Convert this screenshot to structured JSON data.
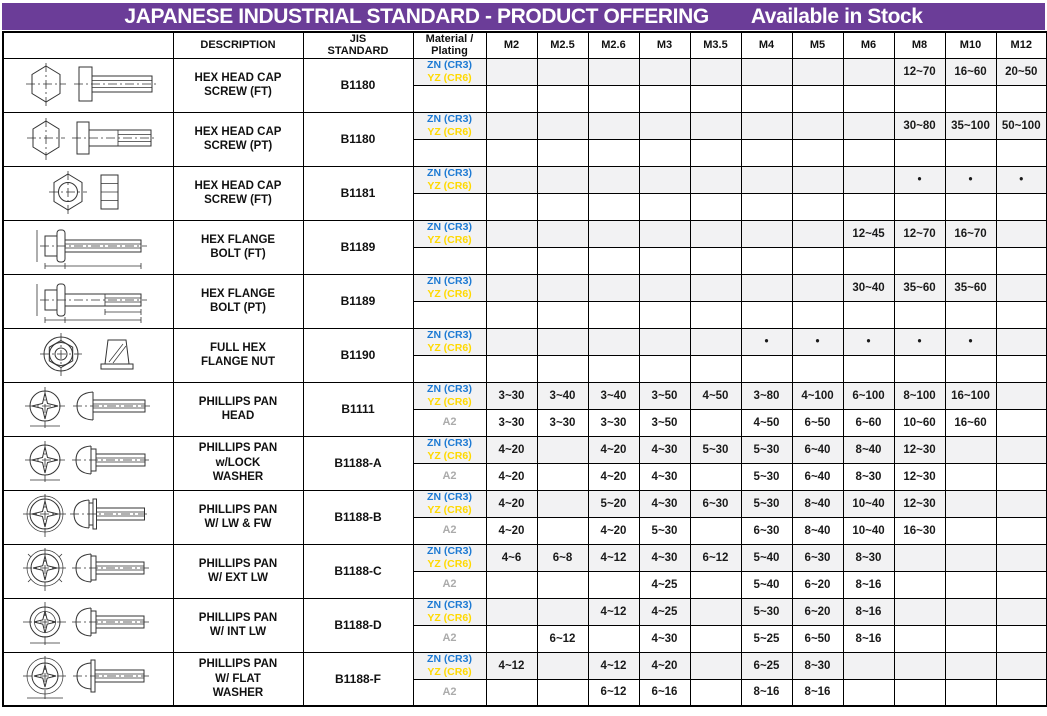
{
  "title": {
    "main": "JAPANESE INDUSTRIAL STANDARD - PRODUCT OFFERING",
    "availability": "Available in Stock"
  },
  "colors": {
    "title_bar_purple": "#6B3D98",
    "zn_blue": "#1D7AD3",
    "yz_yellow": "#FFD900",
    "a2_gray": "#ABABAB",
    "plated_row_bg": "#F2F2F3"
  },
  "header": {
    "image": "",
    "description": "DESCRIPTION",
    "jis": "JIS\nSTANDARD",
    "material": "Material /\nPlating",
    "sizes": [
      "M2",
      "M2.5",
      "M2.6",
      "M3",
      "M3.5",
      "M4",
      "M5",
      "M6",
      "M8",
      "M10",
      "M12"
    ]
  },
  "rows": [
    {
      "drawing": "hex-head-cap-screw-ft",
      "description": "HEX HEAD CAP\nSCREW (FT)",
      "jis": "B1180",
      "platings": [
        {
          "type": "znyz",
          "lines": [
            "ZN (CR3)",
            "YZ (CR6)"
          ],
          "values": [
            "",
            "",
            "",
            "",
            "",
            "",
            "",
            "",
            "12~70",
            "16~60",
            "20~50"
          ]
        },
        {
          "type": "empty",
          "label": "",
          "values": [
            "",
            "",
            "",
            "",
            "",
            "",
            "",
            "",
            "",
            "",
            ""
          ]
        }
      ]
    },
    {
      "drawing": "hex-head-cap-screw-pt",
      "description": "HEX HEAD CAP\nSCREW (PT)",
      "jis": "B1180",
      "platings": [
        {
          "type": "znyz",
          "lines": [
            "ZN (CR3)",
            "YZ (CR6)"
          ],
          "values": [
            "",
            "",
            "",
            "",
            "",
            "",
            "",
            "",
            "30~80",
            "35~100",
            "50~100"
          ]
        },
        {
          "type": "empty",
          "label": "",
          "values": [
            "",
            "",
            "",
            "",
            "",
            "",
            "",
            "",
            "",
            "",
            ""
          ]
        }
      ]
    },
    {
      "drawing": "hex-nut-screw-ft",
      "description": "HEX HEAD CAP\nSCREW (FT)",
      "jis": "B1181",
      "platings": [
        {
          "type": "znyz",
          "lines": [
            "ZN (CR3)",
            "YZ (CR6)"
          ],
          "values": [
            "",
            "",
            "",
            "",
            "",
            "",
            "",
            "",
            "•",
            "•",
            "•"
          ]
        },
        {
          "type": "empty",
          "label": "",
          "values": [
            "",
            "",
            "",
            "",
            "",
            "",
            "",
            "",
            "",
            "",
            ""
          ]
        }
      ]
    },
    {
      "drawing": "hex-flange-bolt-ft",
      "description": "HEX FLANGE\nBOLT (FT)",
      "jis": "B1189",
      "platings": [
        {
          "type": "znyz",
          "lines": [
            "ZN (CR3)",
            "YZ (CR6)"
          ],
          "values": [
            "",
            "",
            "",
            "",
            "",
            "",
            "",
            "12~45",
            "12~70",
            "16~70",
            ""
          ]
        },
        {
          "type": "empty",
          "label": "",
          "values": [
            "",
            "",
            "",
            "",
            "",
            "",
            "",
            "",
            "",
            "",
            ""
          ]
        }
      ]
    },
    {
      "drawing": "hex-flange-bolt-pt",
      "description": "HEX FLANGE\nBOLT (PT)",
      "jis": "B1189",
      "platings": [
        {
          "type": "znyz",
          "lines": [
            "ZN (CR3)",
            "YZ (CR6)"
          ],
          "values": [
            "",
            "",
            "",
            "",
            "",
            "",
            "",
            "30~40",
            "35~60",
            "35~60",
            ""
          ]
        },
        {
          "type": "empty",
          "label": "",
          "values": [
            "",
            "",
            "",
            "",
            "",
            "",
            "",
            "",
            "",
            "",
            ""
          ]
        }
      ]
    },
    {
      "drawing": "full-hex-flange-nut",
      "description": "FULL HEX\nFLANGE NUT",
      "jis": "B1190",
      "platings": [
        {
          "type": "znyz",
          "lines": [
            "ZN (CR3)",
            "YZ (CR6)"
          ],
          "values": [
            "",
            "",
            "",
            "",
            "",
            "•",
            "•",
            "•",
            "•",
            "•",
            ""
          ]
        },
        {
          "type": "empty",
          "label": "",
          "values": [
            "",
            "",
            "",
            "",
            "",
            "",
            "",
            "",
            "",
            "",
            ""
          ]
        }
      ]
    },
    {
      "drawing": "phillips-pan-head",
      "description": "PHILLIPS PAN\nHEAD",
      "jis": "B1111",
      "platings": [
        {
          "type": "znyz",
          "lines": [
            "ZN (CR3)",
            "YZ (CR6)"
          ],
          "values": [
            "3~30",
            "3~40",
            "3~40",
            "3~50",
            "4~50",
            "3~80",
            "4~100",
            "6~100",
            "8~100",
            "16~100",
            ""
          ]
        },
        {
          "type": "a2",
          "label": "A2",
          "values": [
            "3~30",
            "3~30",
            "3~30",
            "3~50",
            "",
            "4~50",
            "6~50",
            "6~60",
            "10~60",
            "16~60",
            ""
          ]
        }
      ]
    },
    {
      "drawing": "phillips-pan-lock-washer",
      "description": "PHILLIPS PAN\nw/LOCK\nWASHER",
      "jis": "B1188-A",
      "platings": [
        {
          "type": "znyz",
          "lines": [
            "ZN (CR3)",
            "YZ (CR6)"
          ],
          "values": [
            "4~20",
            "",
            "4~20",
            "4~30",
            "5~30",
            "5~30",
            "6~40",
            "8~40",
            "12~30",
            "",
            ""
          ]
        },
        {
          "type": "a2",
          "label": "A2",
          "values": [
            "4~20",
            "",
            "4~20",
            "4~30",
            "",
            "5~30",
            "6~40",
            "8~30",
            "12~30",
            "",
            ""
          ]
        }
      ]
    },
    {
      "drawing": "phillips-pan-lw-fw",
      "description": "PHILLIPS PAN\nW/ LW & FW",
      "jis": "B1188-B",
      "platings": [
        {
          "type": "znyz",
          "lines": [
            "ZN (CR3)",
            "YZ (CR6)"
          ],
          "values": [
            "4~20",
            "",
            "5~20",
            "4~30",
            "6~30",
            "5~30",
            "8~40",
            "10~40",
            "12~30",
            "",
            ""
          ]
        },
        {
          "type": "a2",
          "label": "A2",
          "values": [
            "4~20",
            "",
            "4~20",
            "5~30",
            "",
            "6~30",
            "8~40",
            "10~40",
            "16~30",
            "",
            ""
          ]
        }
      ]
    },
    {
      "drawing": "phillips-pan-ext-lw",
      "description": "PHILLIPS PAN\nW/ EXT LW",
      "jis": "B1188-C",
      "platings": [
        {
          "type": "znyz",
          "lines": [
            "ZN (CR3)",
            "YZ (CR6)"
          ],
          "values": [
            "4~6",
            "6~8",
            "4~12",
            "4~30",
            "6~12",
            "5~40",
            "6~30",
            "8~30",
            "",
            "",
            ""
          ]
        },
        {
          "type": "a2",
          "label": "A2",
          "values": [
            "",
            "",
            "",
            "4~25",
            "",
            "5~40",
            "6~20",
            "8~16",
            "",
            "",
            ""
          ]
        }
      ]
    },
    {
      "drawing": "phillips-pan-int-lw",
      "description": "PHILLIPS PAN\nW/ INT LW",
      "jis": "B1188-D",
      "platings": [
        {
          "type": "znyz",
          "lines": [
            "ZN (CR3)",
            "YZ (CR6)"
          ],
          "values": [
            "",
            "",
            "4~12",
            "4~25",
            "",
            "5~30",
            "6~20",
            "8~16",
            "",
            "",
            ""
          ]
        },
        {
          "type": "a2",
          "label": "A2",
          "values": [
            "",
            "6~12",
            "",
            "4~30",
            "",
            "5~25",
            "6~50",
            "8~16",
            "",
            "",
            ""
          ]
        }
      ]
    },
    {
      "drawing": "phillips-pan-flat-washer",
      "description": "PHILLIPS PAN\nW/ FLAT\nWASHER",
      "jis": "B1188-F",
      "platings": [
        {
          "type": "znyz",
          "lines": [
            "ZN (CR3)",
            "YZ (CR6)"
          ],
          "values": [
            "4~12",
            "",
            "4~12",
            "4~20",
            "",
            "6~25",
            "8~30",
            "",
            "",
            "",
            ""
          ]
        },
        {
          "type": "a2",
          "label": "A2",
          "values": [
            "",
            "",
            "6~12",
            "6~16",
            "",
            "8~16",
            "8~16",
            "",
            "",
            "",
            ""
          ]
        }
      ]
    }
  ]
}
